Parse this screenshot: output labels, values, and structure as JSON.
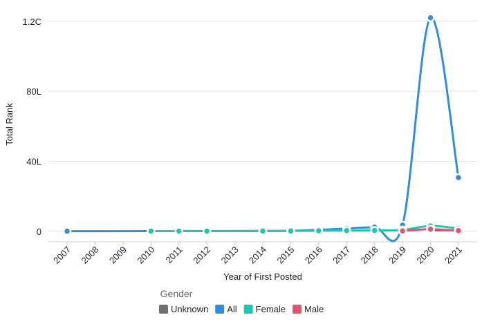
{
  "chart_data": {
    "type": "line",
    "x_label": "Year of First Posted",
    "y_label": "Total Rank",
    "legend_title": "Gender",
    "xlim": [
      2006.33,
      2021.67
    ],
    "xticks": [
      2007,
      2008,
      2009,
      2010,
      2011,
      2012,
      2013,
      2014,
      2015,
      2016,
      2017,
      2018,
      2019,
      2020,
      2021
    ],
    "ylim": [
      -600000,
      12900000
    ],
    "yticks": [
      0,
      {
        "value": 4000000,
        "label": "40L"
      },
      {
        "value": 8000000,
        "label": "80L"
      },
      {
        "value": 12000000,
        "label": "1.2C"
      }
    ],
    "grid": true,
    "legend": "bottom",
    "series": [
      {
        "name": "Unknown",
        "color": "#6f6f6f",
        "x": [
          2020,
          2021
        ],
        "values": [
          50000,
          60000
        ]
      },
      {
        "name": "All",
        "color": "#2e8de0",
        "x": [
          2007,
          2010,
          2011,
          2012,
          2014,
          2015,
          2016,
          2017,
          2018,
          2019,
          2020,
          2021
        ],
        "values": [
          5000,
          10000,
          15000,
          15000,
          20000,
          30000,
          80000,
          160000,
          240000,
          350000,
          12200000,
          3070000
        ]
      },
      {
        "name": "Female",
        "color": "#1dc8b0",
        "x": [
          2010,
          2011,
          2012,
          2014,
          2015,
          2016,
          2017,
          2018,
          2019,
          2020,
          2021
        ],
        "values": [
          10000,
          12000,
          12000,
          15000,
          20000,
          30000,
          40000,
          50000,
          80000,
          310000,
          160000
        ]
      },
      {
        "name": "Male",
        "color": "#e8506e",
        "x": [
          2019,
          2020,
          2021
        ],
        "values": [
          20000,
          120000,
          40000
        ]
      }
    ]
  }
}
